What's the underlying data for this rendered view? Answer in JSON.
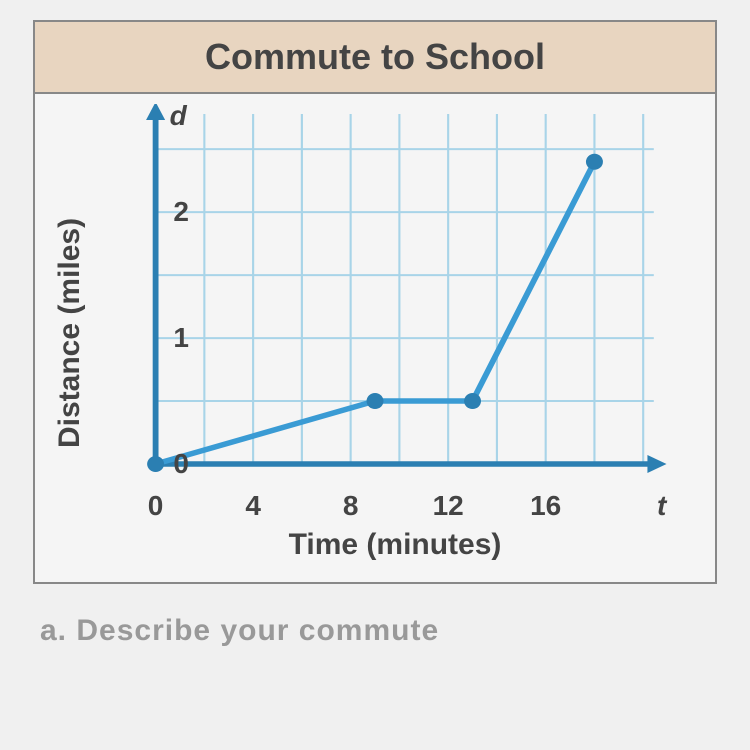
{
  "chart": {
    "type": "line",
    "title": "Commute to School",
    "xlabel": "Time (minutes)",
    "ylabel": "Distance (miles)",
    "y_var_label": "d",
    "x_var_label": "t",
    "xlim": [
      0,
      20
    ],
    "ylim": [
      0,
      2.7
    ],
    "xticks": [
      0,
      4,
      8,
      12,
      16
    ],
    "yticks": [
      0,
      1,
      2
    ],
    "xgrid_step": 2,
    "ygrid_step": 0.5,
    "data_points": [
      {
        "x": 0,
        "y": 0
      },
      {
        "x": 9,
        "y": 0.5
      },
      {
        "x": 13,
        "y": 0.5
      },
      {
        "x": 18,
        "y": 2.4
      }
    ],
    "line_color": "#3a9bd4",
    "marker_color": "#2b7fb2",
    "line_width": 5.5,
    "marker_radius": 8,
    "grid_color": "#a8d4e8",
    "axis_color": "#2b7fb2",
    "axis_width": 5.5,
    "background_color": "#f5f5f5",
    "title_bg": "#e8d5c0",
    "title_fontsize": 36,
    "label_fontsize": 30,
    "tick_fontsize": 28,
    "text_color": "#444444"
  },
  "footer": {
    "question_label": "a.",
    "question_text": "Describe your commute"
  }
}
